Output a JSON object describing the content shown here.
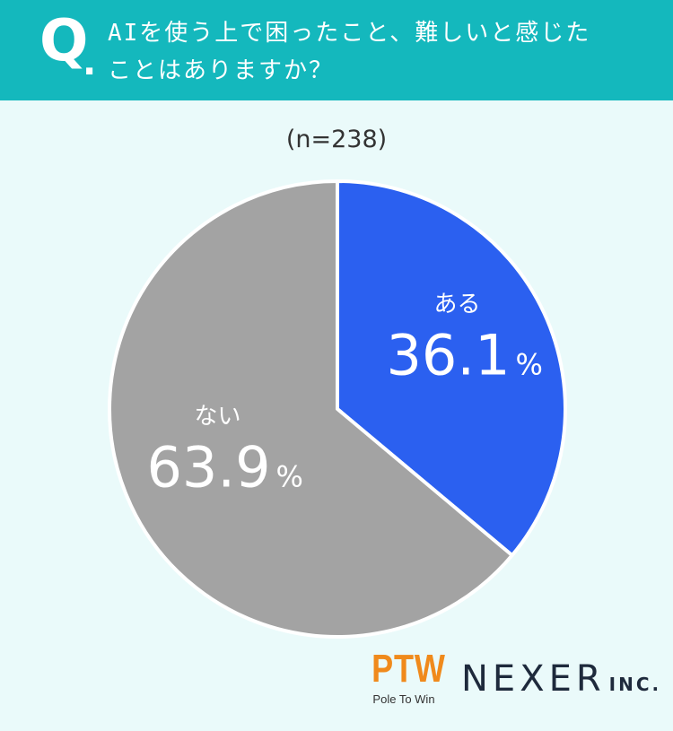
{
  "header": {
    "q_mark": "Q",
    "q_dot": ".",
    "question_line1": "AIを使う上で困ったこと、難しいと感じた",
    "question_line2": "ことはありますか？"
  },
  "sample_label": "(n=238)",
  "chart_data": {
    "type": "pie",
    "title": "AIを使う上で困ったこと、難しいと感じたことはありますか？",
    "n": 238,
    "slices": [
      {
        "label": "ある",
        "value": 36.1,
        "value_text": "36.1",
        "unit": "%",
        "color": "#2b60f0"
      },
      {
        "label": "ない",
        "value": 63.9,
        "value_text": "63.9",
        "unit": "%",
        "color": "#a3a3a3"
      }
    ],
    "start_angle": "top",
    "direction": "clockwise"
  },
  "logos": {
    "ptw_mark": "PTW",
    "ptw_sub": "Pole To Win",
    "nexer_main": "NEXER",
    "nexer_inc": "INC."
  },
  "colors": {
    "header_bg": "#14b8bd",
    "page_bg": "#eafafa",
    "ptw_orange": "#f08a1c",
    "nexer_navy": "#1e2a3c"
  }
}
